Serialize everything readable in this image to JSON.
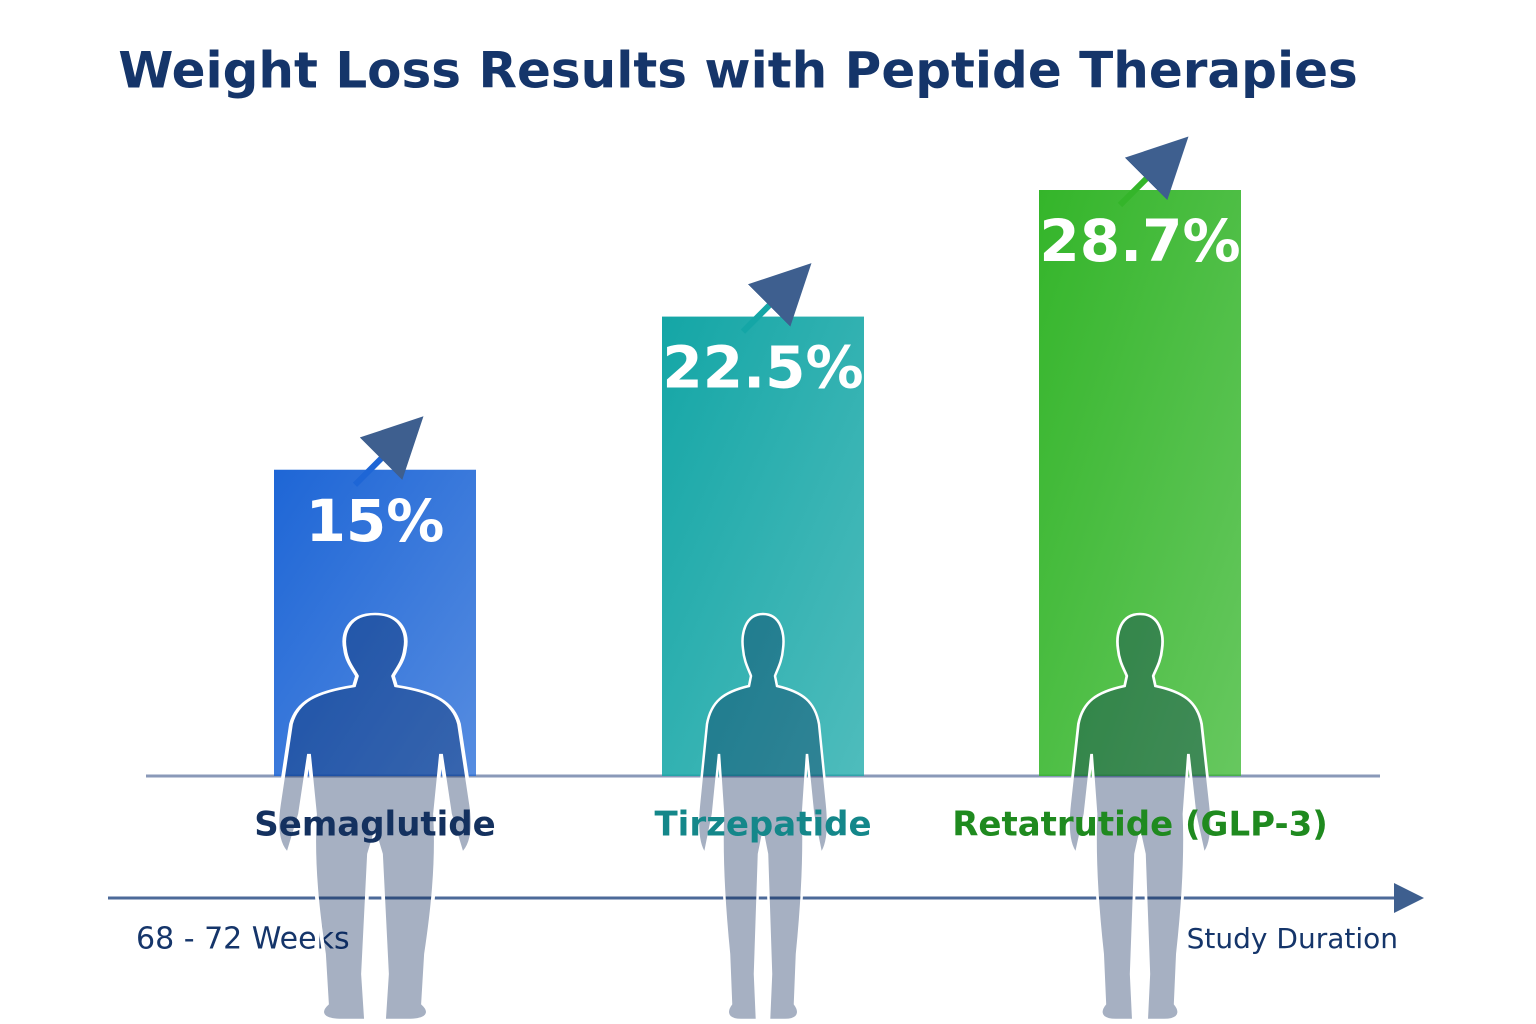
{
  "chart_data": {
    "type": "bar",
    "title": "Weight Loss Results with Peptide Therapies",
    "categories": [
      "Semaglutide",
      "Tirzepatide",
      "Retatrutide (GLP-3)"
    ],
    "values": [
      15,
      22.5,
      28.7
    ],
    "value_labels": [
      "15%",
      "22.5%",
      "28.7%"
    ],
    "colors": [
      "#1e66d6",
      "#14a6a6",
      "#34b52a"
    ],
    "label_colors": [
      "#14315f",
      "#14878a",
      "#1f8a1f"
    ],
    "annotation": "68 - 72 Weeks",
    "xlabel": "Study Duration"
  }
}
